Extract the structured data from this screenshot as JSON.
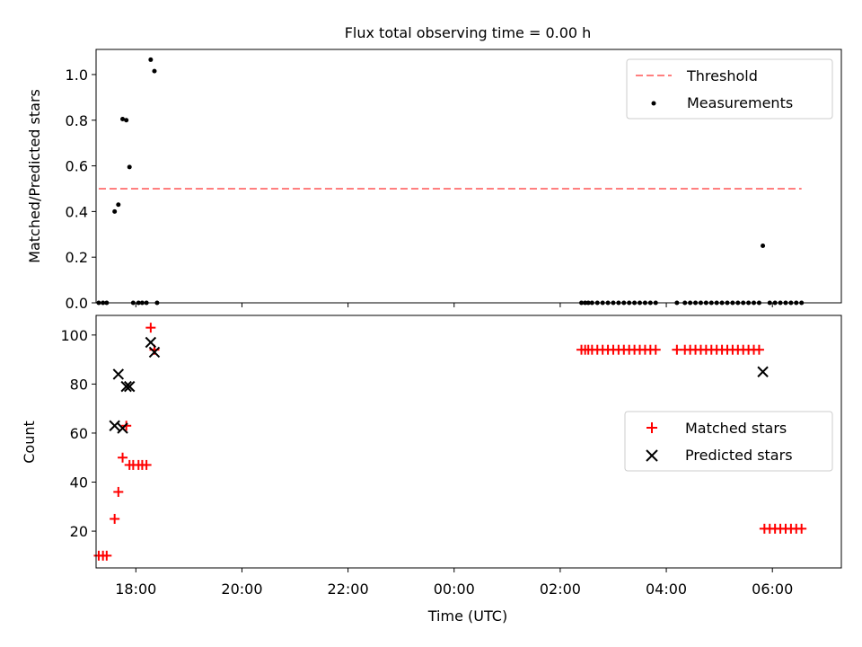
{
  "figure": {
    "title": "Flux total observing time = 0.00 h",
    "xlabel": "Time (UTC)",
    "x_tick_labels": [
      "18:00",
      "20:00",
      "22:00",
      "00:00",
      "02:00",
      "04:00",
      "06:00"
    ]
  },
  "chart_data": [
    {
      "type": "scatter",
      "ylabel": "Matched/Predicted stars",
      "ylim": [
        0.0,
        1.11
      ],
      "y_ticks": [
        0.0,
        0.2,
        0.4,
        0.6,
        0.8,
        1.0
      ],
      "y_tick_labels": [
        "0.0",
        "0.2",
        "0.4",
        "0.6",
        "0.8",
        "1.0"
      ],
      "x_unit": "hours since 00:00 (UTC)",
      "xlim": [
        -6.75,
        7.3
      ],
      "x_ticks": [
        -6,
        -4,
        -2,
        0,
        2,
        4,
        6
      ],
      "legend": {
        "position": "top-right",
        "entries": [
          "Threshold",
          "Measurements"
        ]
      },
      "series": [
        {
          "name": "Threshold",
          "style": "dashed-line",
          "color": "#ff7f7f",
          "x": [
            -6.7,
            6.55
          ],
          "y": [
            0.5,
            0.5
          ]
        },
        {
          "name": "Measurements",
          "style": "dot",
          "color": "#000000",
          "x": [
            -6.7,
            -6.62,
            -6.55,
            -6.4,
            -6.33,
            -6.25,
            -6.18,
            -6.12,
            -6.05,
            -5.95,
            -5.88,
            -5.8,
            -5.72,
            -5.65,
            -5.6,
            2.4,
            2.47,
            2.53,
            2.6,
            2.7,
            2.8,
            2.9,
            3.0,
            3.1,
            3.2,
            3.3,
            3.4,
            3.5,
            3.6,
            3.7,
            3.8,
            4.2,
            4.35,
            4.45,
            4.55,
            4.65,
            4.75,
            4.85,
            4.95,
            5.05,
            5.15,
            5.25,
            5.35,
            5.45,
            5.55,
            5.65,
            5.75,
            5.82,
            5.95,
            6.05,
            6.15,
            6.25,
            6.35,
            6.45,
            6.55
          ],
          "y": [
            0.0,
            0.0,
            0.0,
            0.4,
            0.43,
            0.805,
            0.8,
            0.595,
            0.0,
            0.0,
            0.0,
            0.0,
            1.065,
            1.015,
            0.0,
            0.0,
            0.0,
            0.0,
            0.0,
            0.0,
            0.0,
            0.0,
            0.0,
            0.0,
            0.0,
            0.0,
            0.0,
            0.0,
            0.0,
            0.0,
            0.0,
            0.0,
            0.0,
            0.0,
            0.0,
            0.0,
            0.0,
            0.0,
            0.0,
            0.0,
            0.0,
            0.0,
            0.0,
            0.0,
            0.0,
            0.0,
            0.0,
            0.25,
            0.0,
            0.0,
            0.0,
            0.0,
            0.0,
            0.0,
            0.0
          ]
        }
      ]
    },
    {
      "type": "scatter",
      "ylabel": "Count",
      "ylim": [
        5,
        108
      ],
      "y_ticks": [
        20,
        40,
        60,
        80,
        100
      ],
      "y_tick_labels": [
        "20",
        "40",
        "60",
        "80",
        "100"
      ],
      "x_unit": "hours since 00:00 (UTC)",
      "xlim": [
        -6.75,
        7.3
      ],
      "x_ticks": [
        -6,
        -4,
        -2,
        0,
        2,
        4,
        6
      ],
      "x_tick_labels": [
        "18:00",
        "20:00",
        "22:00",
        "00:00",
        "02:00",
        "04:00",
        "06:00"
      ],
      "legend": {
        "position": "center-right",
        "entries": [
          "Matched stars",
          "Predicted stars"
        ]
      },
      "series": [
        {
          "name": "Matched stars",
          "marker": "plus",
          "color": "#ff0000",
          "x": [
            -6.7,
            -6.62,
            -6.55,
            -6.4,
            -6.33,
            -6.25,
            -6.18,
            -6.12,
            -6.05,
            -5.95,
            -5.88,
            -5.8,
            -5.72,
            -5.65,
            2.4,
            2.47,
            2.53,
            2.6,
            2.7,
            2.8,
            2.9,
            3.0,
            3.1,
            3.2,
            3.3,
            3.4,
            3.5,
            3.6,
            3.7,
            3.8,
            4.2,
            4.35,
            4.45,
            4.55,
            4.65,
            4.75,
            4.85,
            4.95,
            5.05,
            5.15,
            5.25,
            5.35,
            5.45,
            5.55,
            5.65,
            5.75,
            5.85,
            5.95,
            6.05,
            6.15,
            6.25,
            6.35,
            6.45,
            6.55
          ],
          "y": [
            10,
            10,
            10,
            25,
            36,
            50,
            63,
            47,
            47,
            47,
            47,
            47,
            103,
            94,
            94,
            94,
            94,
            94,
            94,
            94,
            94,
            94,
            94,
            94,
            94,
            94,
            94,
            94,
            94,
            94,
            94,
            94,
            94,
            94,
            94,
            94,
            94,
            94,
            94,
            94,
            94,
            94,
            94,
            94,
            94,
            94,
            21,
            21,
            21,
            21,
            21,
            21,
            21,
            21
          ]
        },
        {
          "name": "Predicted stars",
          "marker": "x",
          "color": "#000000",
          "x": [
            -6.4,
            -6.33,
            -6.25,
            -6.18,
            -6.12,
            -5.72,
            -5.65,
            5.82
          ],
          "y": [
            63,
            84,
            62,
            79,
            79,
            97,
            93,
            85
          ]
        }
      ]
    }
  ]
}
